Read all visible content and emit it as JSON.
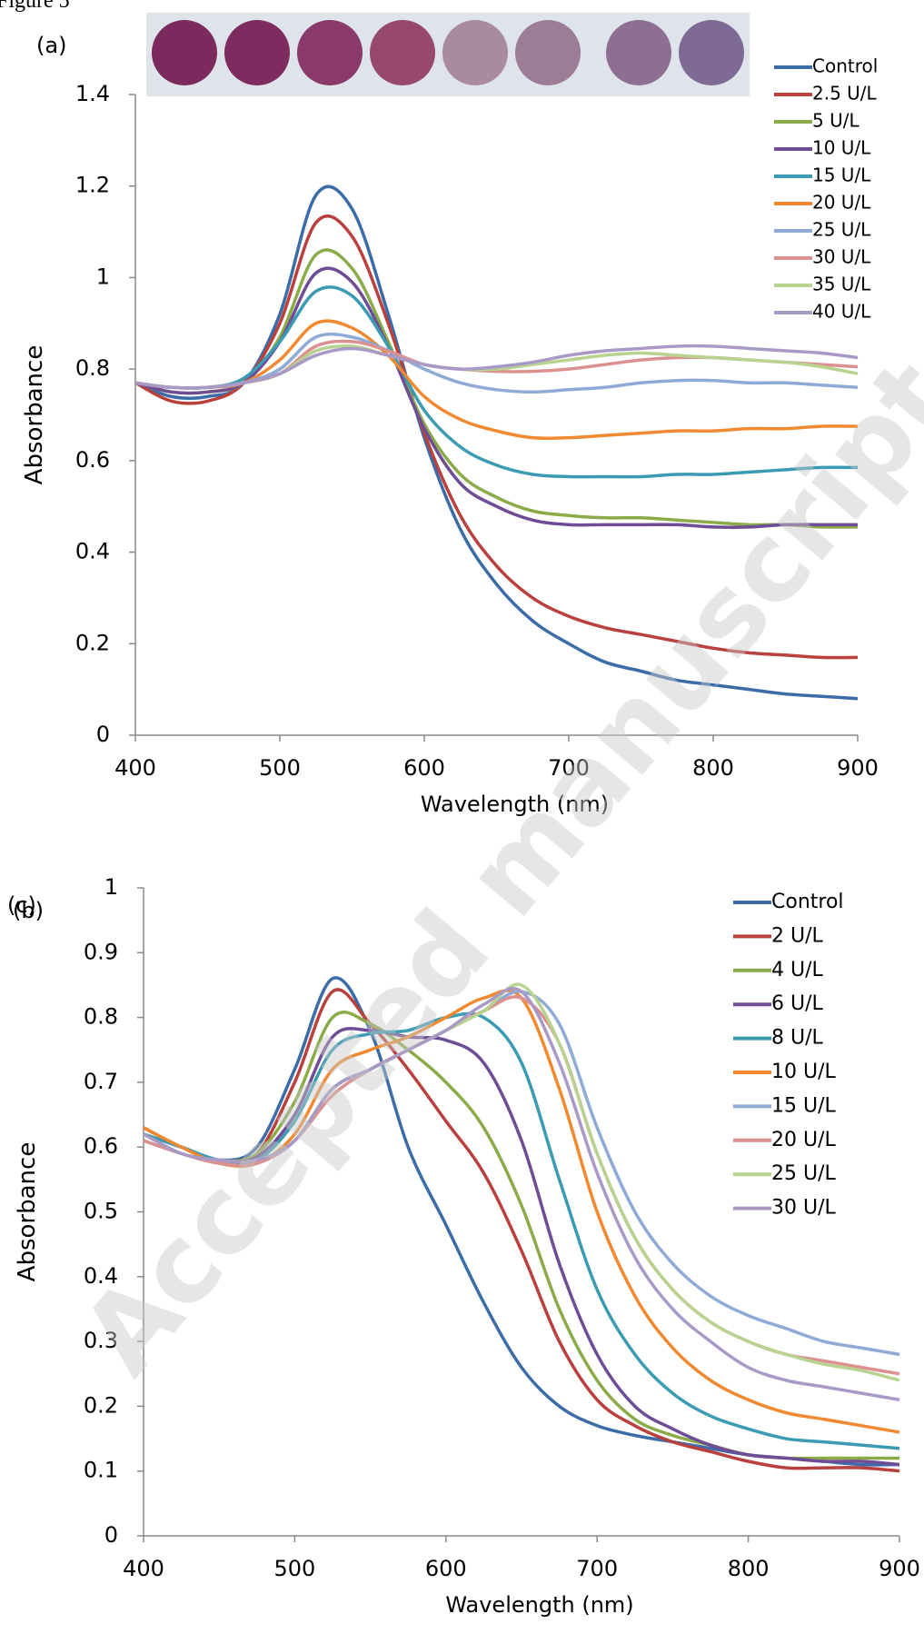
{
  "figure_label": "Figure 5",
  "watermark": "Accepted manuscript",
  "chart_data": [
    {
      "type": "line",
      "panel_labels": [
        "(a)"
      ],
      "x_label": "Wavelength (nm)",
      "y_label": "Absorbance",
      "x": [
        400,
        425,
        450,
        475,
        500,
        525,
        550,
        575,
        600,
        625,
        650,
        675,
        700,
        725,
        750,
        775,
        800,
        825,
        850,
        875,
        900
      ],
      "xlim": [
        400,
        900
      ],
      "ylim": [
        0,
        1.4
      ],
      "xticks": [
        400,
        500,
        600,
        700,
        800,
        900
      ],
      "yticks": [
        0,
        0.2,
        0.4,
        0.6,
        0.8,
        1,
        1.2,
        1.4
      ],
      "series": [
        {
          "name": "Control",
          "color": "#3b6ca8",
          "values": [
            0.77,
            0.74,
            0.74,
            0.77,
            0.92,
            1.18,
            1.15,
            0.92,
            0.65,
            0.45,
            0.33,
            0.25,
            0.2,
            0.16,
            0.14,
            0.12,
            0.11,
            0.1,
            0.09,
            0.085,
            0.08
          ]
        },
        {
          "name": "2.5 U/L",
          "color": "#b9403d",
          "values": [
            0.77,
            0.73,
            0.73,
            0.77,
            0.9,
            1.12,
            1.09,
            0.9,
            0.66,
            0.48,
            0.37,
            0.3,
            0.26,
            0.235,
            0.22,
            0.205,
            0.19,
            0.18,
            0.175,
            0.17,
            0.17
          ]
        },
        {
          "name": "5 U/L",
          "color": "#8aab48",
          "values": [
            0.77,
            0.75,
            0.75,
            0.77,
            0.87,
            1.05,
            1.02,
            0.86,
            0.68,
            0.57,
            0.52,
            0.49,
            0.48,
            0.475,
            0.475,
            0.47,
            0.465,
            0.46,
            0.46,
            0.455,
            0.455
          ]
        },
        {
          "name": "10 U/L",
          "color": "#6e4d96",
          "values": [
            0.77,
            0.75,
            0.75,
            0.77,
            0.86,
            1.01,
            0.99,
            0.85,
            0.67,
            0.55,
            0.5,
            0.47,
            0.46,
            0.46,
            0.46,
            0.46,
            0.455,
            0.455,
            0.46,
            0.46,
            0.46
          ]
        },
        {
          "name": "15 U/L",
          "color": "#3a9bb3",
          "values": [
            0.77,
            0.76,
            0.76,
            0.78,
            0.86,
            0.97,
            0.96,
            0.85,
            0.71,
            0.63,
            0.59,
            0.57,
            0.565,
            0.565,
            0.565,
            0.57,
            0.57,
            0.575,
            0.58,
            0.585,
            0.585
          ]
        },
        {
          "name": "20 U/L",
          "color": "#f0892f",
          "values": [
            0.77,
            0.76,
            0.76,
            0.77,
            0.82,
            0.9,
            0.89,
            0.83,
            0.74,
            0.69,
            0.665,
            0.65,
            0.65,
            0.655,
            0.66,
            0.665,
            0.665,
            0.67,
            0.67,
            0.675,
            0.675
          ]
        },
        {
          "name": "25 U/L",
          "color": "#8faad6",
          "values": [
            0.77,
            0.76,
            0.76,
            0.77,
            0.8,
            0.87,
            0.87,
            0.84,
            0.8,
            0.77,
            0.755,
            0.75,
            0.755,
            0.76,
            0.77,
            0.775,
            0.775,
            0.77,
            0.77,
            0.765,
            0.76
          ]
        },
        {
          "name": "30 U/L",
          "color": "#dc9190",
          "values": [
            0.77,
            0.76,
            0.76,
            0.77,
            0.79,
            0.85,
            0.86,
            0.84,
            0.81,
            0.8,
            0.795,
            0.795,
            0.8,
            0.81,
            0.82,
            0.825,
            0.825,
            0.82,
            0.815,
            0.81,
            0.805
          ]
        },
        {
          "name": "35 U/L",
          "color": "#b7d38f",
          "values": [
            0.77,
            0.76,
            0.76,
            0.77,
            0.79,
            0.84,
            0.85,
            0.83,
            0.81,
            0.8,
            0.8,
            0.81,
            0.82,
            0.83,
            0.835,
            0.83,
            0.825,
            0.82,
            0.815,
            0.805,
            0.79
          ]
        },
        {
          "name": "40 U/L",
          "color": "#a899c7",
          "values": [
            0.77,
            0.76,
            0.76,
            0.77,
            0.79,
            0.83,
            0.845,
            0.83,
            0.81,
            0.8,
            0.805,
            0.815,
            0.83,
            0.84,
            0.845,
            0.85,
            0.85,
            0.845,
            0.84,
            0.835,
            0.825
          ]
        }
      ]
    },
    {
      "type": "line",
      "panel_labels": [
        "(c)",
        "(b)"
      ],
      "x_label": "Wavelength (nm)",
      "y_label": "Absorbance",
      "x": [
        400,
        425,
        450,
        475,
        500,
        525,
        550,
        575,
        600,
        625,
        650,
        675,
        700,
        725,
        750,
        775,
        800,
        825,
        850,
        875,
        900
      ],
      "xlim": [
        400,
        900
      ],
      "ylim": [
        0,
        1
      ],
      "xticks": [
        400,
        500,
        600,
        700,
        800,
        900
      ],
      "yticks": [
        0,
        0.1,
        0.2,
        0.3,
        0.4,
        0.5,
        0.6,
        0.7,
        0.8,
        0.9,
        1
      ],
      "series": [
        {
          "name": "Control",
          "color": "#3b6ca8",
          "values": [
            0.63,
            0.6,
            0.58,
            0.6,
            0.72,
            0.86,
            0.78,
            0.6,
            0.48,
            0.36,
            0.26,
            0.2,
            0.17,
            0.155,
            0.145,
            0.135,
            0.125,
            0.12,
            0.115,
            0.11,
            0.11
          ]
        },
        {
          "name": "2 U/L",
          "color": "#b9403d",
          "values": [
            0.63,
            0.6,
            0.58,
            0.59,
            0.7,
            0.84,
            0.79,
            0.72,
            0.64,
            0.56,
            0.44,
            0.3,
            0.21,
            0.17,
            0.145,
            0.13,
            0.115,
            0.105,
            0.105,
            0.105,
            0.1
          ]
        },
        {
          "name": "4 U/L",
          "color": "#8aab48",
          "values": [
            0.63,
            0.6,
            0.58,
            0.59,
            0.67,
            0.8,
            0.79,
            0.75,
            0.7,
            0.63,
            0.51,
            0.35,
            0.24,
            0.18,
            0.155,
            0.14,
            0.125,
            0.12,
            0.12,
            0.12,
            0.12
          ]
        },
        {
          "name": "6 U/L",
          "color": "#6e4d96",
          "values": [
            0.62,
            0.6,
            0.58,
            0.585,
            0.65,
            0.77,
            0.78,
            0.77,
            0.765,
            0.73,
            0.61,
            0.42,
            0.28,
            0.2,
            0.165,
            0.14,
            0.125,
            0.12,
            0.115,
            0.115,
            0.11
          ]
        },
        {
          "name": "8 U/L",
          "color": "#3a9bb3",
          "values": [
            0.62,
            0.6,
            0.58,
            0.58,
            0.64,
            0.75,
            0.775,
            0.78,
            0.8,
            0.8,
            0.73,
            0.55,
            0.38,
            0.28,
            0.22,
            0.185,
            0.165,
            0.15,
            0.145,
            0.14,
            0.135
          ]
        },
        {
          "name": "10 U/L",
          "color": "#f0892f",
          "values": [
            0.63,
            0.6,
            0.575,
            0.575,
            0.62,
            0.72,
            0.75,
            0.77,
            0.8,
            0.83,
            0.83,
            0.69,
            0.5,
            0.37,
            0.29,
            0.24,
            0.21,
            0.19,
            0.18,
            0.17,
            0.16
          ]
        },
        {
          "name": "15 U/L",
          "color": "#8faad6",
          "values": [
            0.61,
            0.59,
            0.575,
            0.575,
            0.61,
            0.69,
            0.72,
            0.75,
            0.78,
            0.81,
            0.84,
            0.79,
            0.63,
            0.5,
            0.42,
            0.37,
            0.34,
            0.32,
            0.3,
            0.29,
            0.28
          ]
        },
        {
          "name": "20 U/L",
          "color": "#dc9190",
          "values": [
            0.61,
            0.59,
            0.575,
            0.575,
            0.61,
            0.68,
            0.72,
            0.75,
            0.78,
            0.81,
            0.83,
            0.76,
            0.59,
            0.46,
            0.38,
            0.33,
            0.3,
            0.28,
            0.27,
            0.26,
            0.25
          ]
        },
        {
          "name": "25 U/L",
          "color": "#b7d38f",
          "values": [
            0.62,
            0.59,
            0.58,
            0.58,
            0.61,
            0.69,
            0.72,
            0.75,
            0.78,
            0.81,
            0.85,
            0.76,
            0.59,
            0.46,
            0.38,
            0.33,
            0.3,
            0.28,
            0.265,
            0.255,
            0.24
          ]
        },
        {
          "name": "30 U/L",
          "color": "#a899c7",
          "values": [
            0.62,
            0.59,
            0.58,
            0.58,
            0.61,
            0.69,
            0.72,
            0.75,
            0.78,
            0.82,
            0.84,
            0.73,
            0.56,
            0.43,
            0.35,
            0.3,
            0.26,
            0.24,
            0.23,
            0.22,
            0.21
          ]
        }
      ]
    }
  ]
}
